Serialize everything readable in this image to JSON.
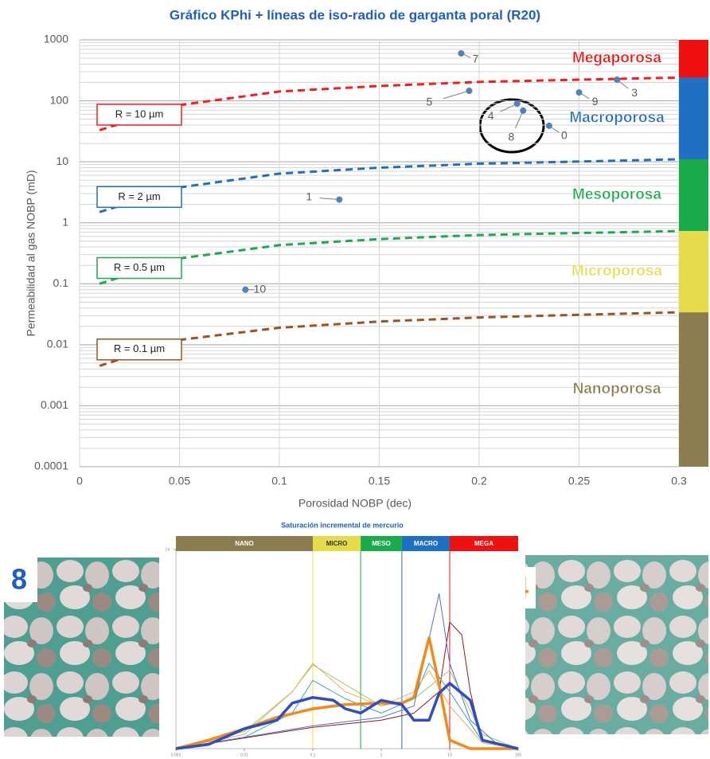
{
  "chart_data": [
    {
      "type": "scatter",
      "title": "Gráfico KPhi + líneas de iso-radio de garganta poral (R20)",
      "xlabel": "Porosidad NOBP (dec)",
      "ylabel": "Permeabilidad al gas NOBP (mD)",
      "xlim": [
        0,
        0.3
      ],
      "ylim": [
        0.0001,
        1000
      ],
      "ylog": true,
      "xticks": [
        0,
        0.05,
        0.1,
        0.15,
        0.2,
        0.25,
        0.3
      ],
      "yticks": [
        0.0001,
        0.001,
        0.01,
        0.1,
        1,
        10,
        100,
        1000
      ],
      "grid": true,
      "minor_grid": true,
      "points": {
        "color": "#4f81bd",
        "labels": [
          "7",
          "5",
          "3",
          "9",
          "4",
          "8",
          "0",
          "1",
          "10"
        ],
        "x": [
          0.191,
          0.195,
          0.269,
          0.25,
          0.219,
          0.222,
          0.235,
          0.13,
          0.083
        ],
        "values": [
          600,
          146,
          222,
          137,
          90,
          69,
          39,
          2.4,
          0.08
        ]
      },
      "series": [
        {
          "name": "R = 10 µm",
          "color": "#ff1a1a",
          "x": [
            0.01,
            0.05,
            0.1,
            0.15,
            0.2,
            0.25,
            0.3
          ],
          "values": [
            33,
            85,
            142,
            175,
            204,
            222,
            240
          ]
        },
        {
          "name": "R = 2 µm",
          "color": "#1f6fc5",
          "x": [
            0.01,
            0.05,
            0.1,
            0.15,
            0.2,
            0.25,
            0.3
          ],
          "values": [
            1.5,
            3.8,
            6.4,
            8,
            9.3,
            10.1,
            11
          ]
        },
        {
          "name": "R = 0.5 µm",
          "color": "#1aab4b",
          "x": [
            0.01,
            0.05,
            0.1,
            0.15,
            0.2,
            0.25,
            0.3
          ],
          "values": [
            0.1,
            0.26,
            0.43,
            0.54,
            0.63,
            0.68,
            0.73
          ]
        },
        {
          "name": "R = 0.1 µm",
          "color": "#a0521d",
          "x": [
            0.01,
            0.05,
            0.1,
            0.15,
            0.2,
            0.25,
            0.3
          ],
          "values": [
            0.0045,
            0.012,
            0.019,
            0.024,
            0.028,
            0.031,
            0.034
          ]
        }
      ],
      "zones": [
        {
          "name": "Megaporosa",
          "color": "#f01010",
          "range": [
            240,
            1000
          ]
        },
        {
          "name": "Macroporosa",
          "color": "#1f6fc5",
          "range": [
            11,
            240
          ]
        },
        {
          "name": "Mesoporosa",
          "color": "#1aab4b",
          "range": [
            0.73,
            11
          ]
        },
        {
          "name": "Microporosa",
          "color": "#e6dc4a",
          "range": [
            0.034,
            0.73
          ]
        },
        {
          "name": "Nanoporosa",
          "color": "#8b7d4f",
          "range": [
            0.0001,
            0.034
          ]
        }
      ]
    },
    {
      "type": "line",
      "title": "Saturación incremental de mercurio",
      "xlog": true,
      "xlim": [
        0.001,
        100
      ],
      "ylim": [
        0,
        14
      ],
      "xticks": [
        0.001,
        0.01,
        0.1,
        1,
        10,
        100
      ],
      "yticks": [
        14
      ],
      "zones": [
        {
          "name": "NANO",
          "color": "#8b7d4f",
          "range": [
            0.001,
            0.1
          ]
        },
        {
          "name": "MICRO",
          "color": "#e6dc4a",
          "range": [
            0.1,
            0.5
          ]
        },
        {
          "name": "MESO",
          "color": "#1aab4b",
          "range": [
            0.5,
            2
          ]
        },
        {
          "name": "MACRO",
          "color": "#1f6fc5",
          "range": [
            2,
            10
          ]
        },
        {
          "name": "MEGA",
          "color": "#f01010",
          "range": [
            10,
            100
          ]
        }
      ],
      "series": [
        {
          "color": "#8b1a1a",
          "line_width": 1,
          "x": [
            0.001,
            0.1,
            1,
            3,
            7,
            10,
            15,
            20,
            30,
            100
          ],
          "values": [
            0,
            1.5,
            2,
            2.5,
            4,
            8.9,
            8,
            4,
            0.5,
            0
          ]
        },
        {
          "color": "#9acd60",
          "line_width": 1,
          "x": [
            0.001,
            0.01,
            0.05,
            0.1,
            0.3,
            1,
            3,
            10,
            30,
            100
          ],
          "values": [
            0,
            1.2,
            4,
            5.9,
            4.5,
            3,
            3.5,
            5.5,
            1,
            0
          ]
        },
        {
          "color": "#3aa3b8",
          "line_width": 1,
          "x": [
            0.001,
            0.01,
            0.05,
            0.1,
            0.3,
            1,
            3,
            5,
            10,
            30,
            100
          ],
          "values": [
            0,
            0.8,
            2.5,
            4.8,
            3.5,
            2.5,
            3.5,
            6,
            4,
            0.5,
            0
          ]
        },
        {
          "color": "#f4a860",
          "line_width": 1,
          "x": [
            0.001,
            0.01,
            0.05,
            0.1,
            0.3,
            1,
            3,
            5,
            10,
            30,
            100
          ],
          "values": [
            0,
            1,
            4,
            6,
            4,
            3,
            4,
            5.5,
            3,
            0.4,
            0
          ]
        },
        {
          "color": "#4f6fd0",
          "line_width": 1,
          "x": [
            0.001,
            0.1,
            1,
            3,
            7,
            10,
            20,
            50,
            100
          ],
          "values": [
            0,
            1.6,
            2.2,
            3,
            10.9,
            6,
            2,
            0.3,
            0
          ]
        },
        {
          "color": "#f08a1c",
          "line_width": 3.5,
          "x": [
            0.001,
            0.003,
            0.01,
            0.03,
            0.1,
            0.3,
            1,
            2,
            3,
            5,
            7,
            10,
            20,
            100
          ],
          "values": [
            0,
            0.6,
            1.4,
            2.2,
            2.8,
            3.1,
            3.2,
            3.2,
            3.6,
            7.8,
            4.5,
            0.6,
            0,
            0
          ]
        },
        {
          "color": "#2f4fbf",
          "line_width": 3.5,
          "x": [
            0.001,
            0.003,
            0.01,
            0.03,
            0.05,
            0.1,
            0.2,
            0.3,
            0.5,
            1,
            2,
            3,
            5,
            7,
            10,
            20,
            30,
            100
          ],
          "values": [
            0,
            0.3,
            1.4,
            2.0,
            3.2,
            3.6,
            3.4,
            2.8,
            2.5,
            3.4,
            3.1,
            2.0,
            2.0,
            3.9,
            4.6,
            3.4,
            0.6,
            0
          ]
        }
      ]
    }
  ],
  "photos": [
    {
      "label": "8",
      "color": "#1f5fbf"
    },
    {
      "label": "4",
      "color": "#f08a1c"
    }
  ]
}
